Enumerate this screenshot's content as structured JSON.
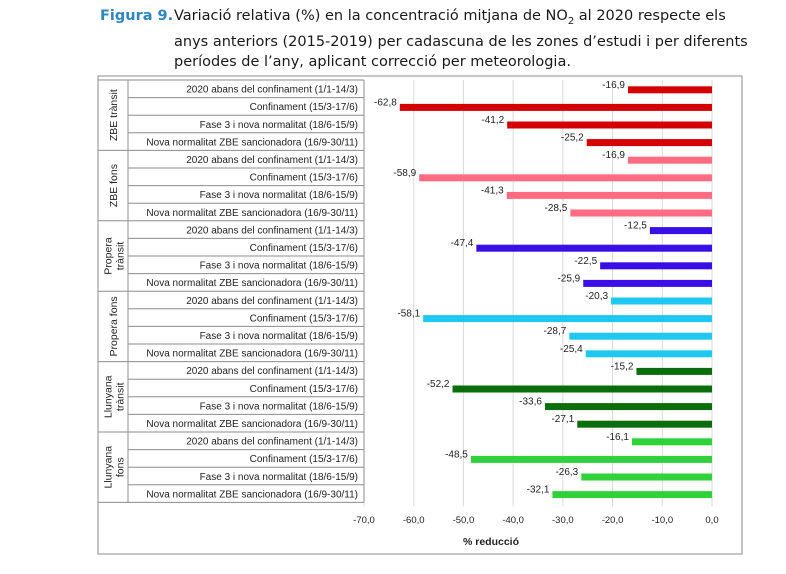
{
  "figure": {
    "label": "Figura 9.",
    "title_pre": "Variació relativa (%) en la concentració mitjana de NO",
    "title_sub": "2",
    "title_post": " al 2020 respecte els anys anteriors (2015-2019) per cadascuna de les zones d’estudi i per diferents períodes de l’any, aplicant correcció per meteorologia."
  },
  "chart_data": {
    "type": "bar",
    "orientation": "horizontal",
    "xlabel": "% reducció",
    "xlim": [
      -70,
      0
    ],
    "xticks": [
      "-70,0",
      "-60,0",
      "-50,0",
      "-40,0",
      "-30,0",
      "-20,0",
      "-10,0",
      "0,0"
    ],
    "grid": true,
    "period_labels": [
      "2020 abans del confinament (1/1-14/3)",
      "Confinament (15/3-17/6)",
      "Fase 3 i nova normalitat (18/6-15/9)",
      "Nova normalitat ZBE sancionadora (16/9-30/11)"
    ],
    "groups": [
      {
        "name": "ZBE trànsit",
        "color": "#d40000",
        "values": [
          -16.9,
          -62.8,
          -41.2,
          -25.2
        ],
        "labels": [
          "-16,9",
          "-62,8",
          "-41,2",
          "-25,2"
        ]
      },
      {
        "name": "ZBE fons",
        "color": "#ff6b80",
        "values": [
          -16.9,
          -58.9,
          -41.3,
          -28.5
        ],
        "labels": [
          "-16,9",
          "-58,9",
          "-41,3",
          "-28,5"
        ]
      },
      {
        "name": "Propera trànsit",
        "color": "#3a0ee6",
        "values": [
          -12.5,
          -47.4,
          -22.5,
          -25.9
        ],
        "labels": [
          "-12,5",
          "-47,4",
          "-22,5",
          "-25,9"
        ]
      },
      {
        "name": "Propera fons",
        "color": "#1ec8f0",
        "values": [
          -20.3,
          -58.1,
          -28.7,
          -25.4
        ],
        "labels": [
          "-20,3",
          "-58,1",
          "-28,7",
          "-25,4"
        ]
      },
      {
        "name": "Llunyana trànsit",
        "color": "#0a6e0a",
        "values": [
          -15.2,
          -52.2,
          -33.6,
          -27.1
        ],
        "labels": [
          "-15,2",
          "-52,2",
          "-33,6",
          "-27,1"
        ]
      },
      {
        "name": "Llunyana fons",
        "color": "#2fd23a",
        "values": [
          -16.1,
          -48.5,
          -26.3,
          -32.1
        ],
        "labels": [
          "-16,1",
          "-48,5",
          "-26,3",
          "-32,1"
        ]
      }
    ]
  }
}
